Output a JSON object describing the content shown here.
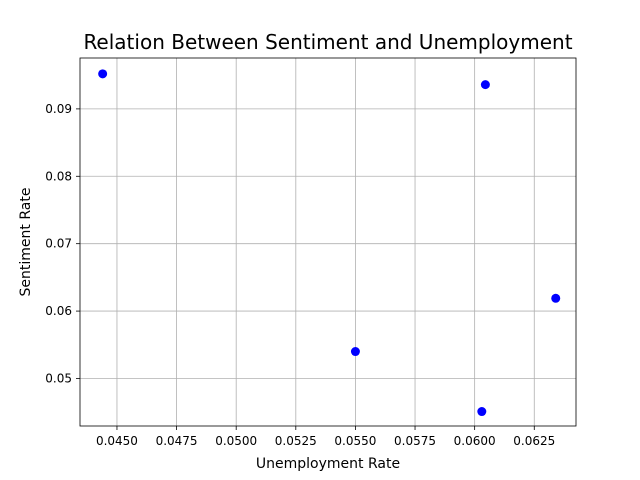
{
  "chart_data": {
    "type": "scatter",
    "title": "Relation Between Sentiment and Unemployment",
    "xlabel": "Unemployment Rate",
    "ylabel": "Sentiment Rate",
    "xlim": [
      0.04345,
      0.06425
    ],
    "ylim": [
      0.04295,
      0.09755
    ],
    "grid": true,
    "marker_color": "#0000ff",
    "x_ticks": [
      0.045,
      0.0475,
      0.05,
      0.0525,
      0.055,
      0.0575,
      0.06,
      0.0625
    ],
    "x_tick_labels": [
      "0.0450",
      "0.0475",
      "0.0500",
      "0.0525",
      "0.0550",
      "0.0575",
      "0.0600",
      "0.0625"
    ],
    "y_ticks": [
      0.05,
      0.06,
      0.07,
      0.08,
      0.09
    ],
    "y_tick_labels": [
      "0.05",
      "0.06",
      "0.07",
      "0.08",
      "0.09"
    ],
    "points": [
      {
        "x": 0.0444,
        "y": 0.0952
      },
      {
        "x": 0.06045,
        "y": 0.0936
      },
      {
        "x": 0.0634,
        "y": 0.0619
      },
      {
        "x": 0.055,
        "y": 0.054
      },
      {
        "x": 0.0603,
        "y": 0.0451
      }
    ]
  }
}
